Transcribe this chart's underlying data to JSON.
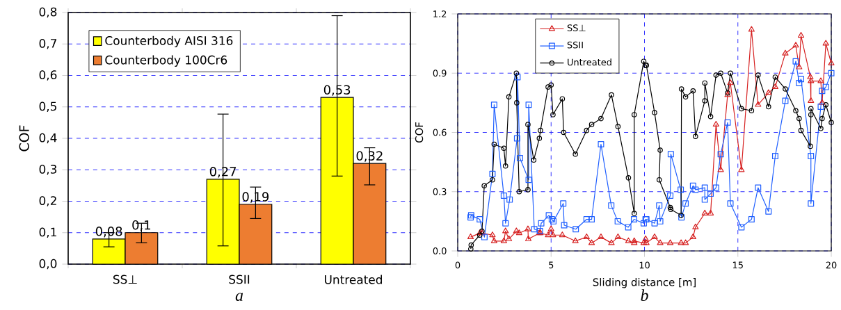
{
  "chart_data": [
    {
      "type": "bar",
      "ylabel": "COF",
      "categories": [
        "SS⊥",
        "SSII",
        "Untreated"
      ],
      "series": [
        {
          "name": "Counterbody AISI 316",
          "color": "#ffff00",
          "values": [
            0.08,
            0.27,
            0.53
          ],
          "value_labels": [
            "0,08",
            "0,27",
            "0,53"
          ],
          "errors": [
            [
              0.055,
              0.1
            ],
            [
              0.058,
              0.477
            ],
            [
              0.28,
              0.79
            ]
          ]
        },
        {
          "name": "Counterbody 100Cr6",
          "color": "#ed7d31",
          "values": [
            0.1,
            0.19,
            0.32
          ],
          "value_labels": [
            "0,1",
            "0,19",
            "0,32"
          ],
          "errors": [
            [
              0.068,
              0.13
            ],
            [
              0.145,
              0.245
            ],
            [
              0.252,
              0.37
            ]
          ]
        }
      ],
      "ylim": [
        0,
        0.8
      ],
      "yticks": [
        {
          "value": 0,
          "label": "0,0"
        },
        {
          "value": 0.1,
          "label": "0,1"
        },
        {
          "value": 0.2,
          "label": "0,2"
        },
        {
          "value": 0.3,
          "label": "0,3"
        },
        {
          "value": 0.4,
          "label": "0,4"
        },
        {
          "value": 0.5,
          "label": "0,5"
        },
        {
          "value": 0.6,
          "label": "0,6"
        },
        {
          "value": 0.7,
          "label": "0,7"
        },
        {
          "value": 0.8,
          "label": "0,8"
        }
      ],
      "grid": "y",
      "legend": "top left",
      "annotations": [
        "a"
      ]
    },
    {
      "type": "line",
      "xlabel": "Sliding distance [m]",
      "ylabel": "COF",
      "series": [
        {
          "name": "SS⊥",
          "color": "#d62020",
          "marker": "triangle",
          "x": [
            0.69,
            1.18,
            1.3,
            1.86,
            1.95,
            2.47,
            2.56,
            2.74,
            3.14,
            3.29,
            3.76,
            3.78,
            4.37,
            4.43,
            4.84,
            5.0,
            5.1,
            5.6,
            6.3,
            6.9,
            7.17,
            7.67,
            8.23,
            8.58,
            9.14,
            9.45,
            9.45,
            9.96,
            10.06,
            10.1,
            10.54,
            10.84,
            11.38,
            11.96,
            12.2,
            12.6,
            12.73,
            13.23,
            13.54,
            13.83,
            14.08,
            14.45,
            14.6,
            15.19,
            15.73,
            16.08,
            16.64,
            17.0,
            17.54,
            18.1,
            18.28,
            18.38,
            18.88,
            18.91,
            18.91,
            19.44,
            19.51,
            19.71,
            20.0
          ],
          "values": [
            0.07,
            0.09,
            0.09,
            0.08,
            0.05,
            0.05,
            0.1,
            0.06,
            0.1,
            0.09,
            0.11,
            0.06,
            0.09,
            0.09,
            0.08,
            0.11,
            0.08,
            0.08,
            0.05,
            0.07,
            0.04,
            0.07,
            0.04,
            0.07,
            0.05,
            0.04,
            0.05,
            0.04,
            0.06,
            0.04,
            0.07,
            0.04,
            0.04,
            0.04,
            0.04,
            0.07,
            0.12,
            0.19,
            0.19,
            0.64,
            0.41,
            0.79,
            0.85,
            0.41,
            1.12,
            0.74,
            0.8,
            0.83,
            1.0,
            1.04,
            0.93,
            1.09,
            0.88,
            0.76,
            0.86,
            0.86,
            0.75,
            1.05,
            0.95
          ]
        },
        {
          "name": "SSII",
          "color": "#1f5fff",
          "marker": "square",
          "x": [
            0.69,
            0.72,
            1.18,
            1.43,
            1.86,
            1.95,
            2.47,
            2.56,
            2.78,
            3.18,
            3.2,
            3.33,
            3.8,
            3.8,
            4.1,
            4.4,
            4.47,
            4.88,
            5.04,
            5.12,
            5.65,
            5.7,
            6.32,
            6.9,
            7.17,
            7.67,
            8.22,
            8.57,
            9.13,
            9.44,
            9.96,
            10.06,
            10.1,
            10.54,
            10.79,
            10.84,
            11.38,
            11.41,
            11.94,
            11.98,
            12.2,
            12.6,
            12.73,
            13.23,
            13.23,
            13.54,
            13.83,
            14.08,
            14.45,
            14.6,
            15.19,
            15.73,
            16.08,
            16.64,
            17.0,
            17.54,
            18.1,
            18.28,
            18.38,
            18.91,
            18.91,
            19.44,
            19.51,
            19.71,
            20.0
          ],
          "values": [
            0.17,
            0.18,
            0.16,
            0.07,
            0.39,
            0.74,
            0.28,
            0.14,
            0.26,
            0.57,
            0.88,
            0.47,
            0.36,
            0.74,
            0.11,
            0.1,
            0.14,
            0.18,
            0.16,
            0.15,
            0.24,
            0.13,
            0.11,
            0.16,
            0.16,
            0.54,
            0.23,
            0.15,
            0.12,
            0.16,
            0.14,
            0.16,
            0.16,
            0.14,
            0.23,
            0.15,
            0.28,
            0.49,
            0.31,
            0.17,
            0.24,
            0.33,
            0.31,
            0.32,
            0.26,
            0.29,
            0.32,
            0.49,
            0.65,
            0.24,
            0.12,
            0.16,
            0.32,
            0.2,
            0.48,
            0.76,
            0.96,
            0.85,
            0.87,
            0.48,
            0.24,
            0.73,
            0.81,
            0.83,
            0.9
          ]
        },
        {
          "name": "Untreated",
          "color": "#000000",
          "marker": "circle",
          "x": [
            0.7,
            0.72,
            1.18,
            1.3,
            1.42,
            1.86,
            1.95,
            2.47,
            2.56,
            2.74,
            3.14,
            3.16,
            3.29,
            3.76,
            3.76,
            4.07,
            4.37,
            4.43,
            4.84,
            5.0,
            5.1,
            5.6,
            5.67,
            6.3,
            6.9,
            7.17,
            7.67,
            8.23,
            8.58,
            9.14,
            9.45,
            9.45,
            9.96,
            10.06,
            10.1,
            10.54,
            10.84,
            10.79,
            11.38,
            11.41,
            11.96,
            11.98,
            12.2,
            12.6,
            12.73,
            13.23,
            13.23,
            13.54,
            13.83,
            14.08,
            14.45,
            14.6,
            15.19,
            15.73,
            16.08,
            16.64,
            17.0,
            17.54,
            18.1,
            18.28,
            18.38,
            18.88,
            18.91,
            18.91,
            19.44,
            19.51,
            19.71,
            20.0
          ],
          "values": [
            0.01,
            0.03,
            0.08,
            0.1,
            0.33,
            0.36,
            0.54,
            0.52,
            0.43,
            0.78,
            0.9,
            0.75,
            0.3,
            0.31,
            0.64,
            0.46,
            0.57,
            0.61,
            0.83,
            0.84,
            0.69,
            0.77,
            0.6,
            0.49,
            0.61,
            0.64,
            0.67,
            0.79,
            0.63,
            0.37,
            0.19,
            0.69,
            0.96,
            0.94,
            0.94,
            0.7,
            0.51,
            0.36,
            0.22,
            0.21,
            0.18,
            0.82,
            0.78,
            0.81,
            0.58,
            0.76,
            0.85,
            0.68,
            0.89,
            0.9,
            0.8,
            0.9,
            0.72,
            0.71,
            0.89,
            0.73,
            0.88,
            0.82,
            0.71,
            0.67,
            0.61,
            0.53,
            0.69,
            0.72,
            0.62,
            0.67,
            0.74,
            0.65
          ]
        }
      ],
      "xlim": [
        0,
        20
      ],
      "xticks": [
        0,
        5,
        10,
        15,
        20
      ],
      "ylim": [
        0,
        1.2
      ],
      "yticks": [
        {
          "value": 0,
          "label": "0.0"
        },
        {
          "value": 0.3,
          "label": "0.3"
        },
        {
          "value": 0.6,
          "label": "0.6"
        },
        {
          "value": 0.9,
          "label": "0.9"
        },
        {
          "value": 1.2,
          "label": "1.2"
        }
      ],
      "grid": true,
      "legend": "top",
      "line_style": "solid",
      "annotations": [
        "b"
      ]
    }
  ]
}
